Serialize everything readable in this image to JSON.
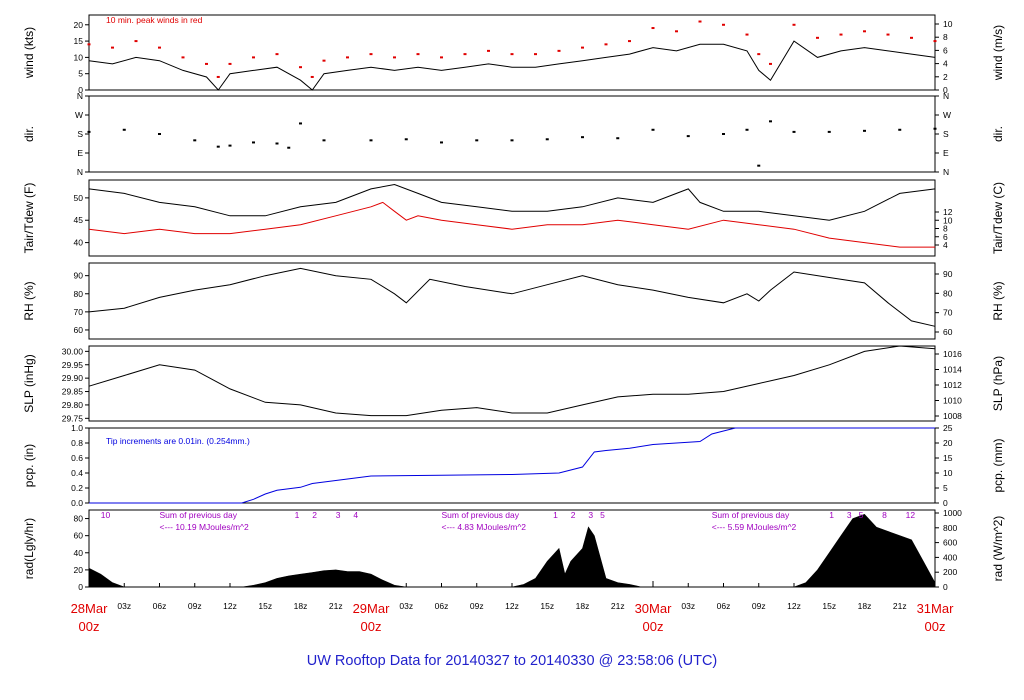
{
  "page": {
    "footer_title": "UW Rooftop Data for 20140327  to  20140330 @ 23:58:06  (UTC)"
  },
  "colors": {
    "axis": "#000000",
    "primary_series": "#000000",
    "secondary_series": "#e00000",
    "precip": "#0000e0",
    "radiation_text": "#a000c0",
    "date_labels": "#e00000",
    "footer": "#2222cc"
  },
  "chart_data": [
    {
      "id": "wind",
      "type": "line",
      "ylabel": "wind (kts)",
      "ylabel_right": "wind (m/s)",
      "ylim": [
        0,
        23
      ],
      "yticks": [
        0,
        5,
        10,
        15,
        20
      ],
      "yticks_right_values": [
        0,
        2,
        4,
        6,
        8,
        10
      ],
      "annotation": "10 min. peak winds in red",
      "series": [
        {
          "name": "wind speed",
          "style": "line",
          "color": "#000000",
          "x": [
            0,
            2,
            4,
            6,
            8,
            10,
            11,
            12,
            14,
            16,
            18,
            19,
            20,
            22,
            24,
            26,
            28,
            30,
            32,
            34,
            36,
            38,
            40,
            42,
            44,
            46,
            48,
            50,
            52,
            54,
            56,
            57,
            58,
            60,
            62,
            64,
            66,
            68,
            70,
            72
          ],
          "values": [
            9,
            8,
            10,
            9,
            6,
            4,
            0,
            5,
            6,
            7,
            3,
            0,
            5,
            6,
            7,
            6,
            7,
            6,
            7,
            8,
            7,
            7,
            8,
            9,
            10,
            11,
            13,
            12,
            14,
            14,
            12,
            6,
            3,
            15,
            10,
            12,
            13,
            12,
            11,
            10
          ]
        },
        {
          "name": "10 min. peak winds",
          "style": "dots",
          "color": "#e00000",
          "x": [
            0,
            2,
            4,
            6,
            8,
            10,
            11,
            12,
            14,
            16,
            18,
            19,
            20,
            22,
            24,
            26,
            28,
            30,
            32,
            34,
            36,
            38,
            40,
            42,
            44,
            46,
            48,
            50,
            52,
            54,
            56,
            57,
            58,
            60,
            62,
            64,
            66,
            68,
            70,
            72
          ],
          "values": [
            14,
            13,
            15,
            13,
            10,
            8,
            4,
            8,
            10,
            11,
            7,
            4,
            9,
            10,
            11,
            10,
            11,
            10,
            11,
            12,
            11,
            11,
            12,
            13,
            14,
            15,
            19,
            18,
            21,
            20,
            17,
            11,
            8,
            20,
            16,
            17,
            18,
            17,
            16,
            15
          ]
        }
      ]
    },
    {
      "id": "direction",
      "type": "scatter",
      "ylabel": "dir.",
      "ylim": [
        0,
        360
      ],
      "ytick_labels": [
        "N",
        "E",
        "S",
        "W",
        "N"
      ],
      "ytick_values": [
        0,
        90,
        180,
        270,
        360
      ],
      "series": [
        {
          "name": "wind direction",
          "color": "#000000",
          "x": [
            0,
            3,
            6,
            9,
            11,
            12,
            14,
            16,
            17,
            18,
            20,
            24,
            27,
            30,
            33,
            36,
            39,
            42,
            45,
            48,
            51,
            54,
            56,
            57,
            58,
            60,
            63,
            66,
            69,
            72
          ],
          "values": [
            190,
            200,
            180,
            150,
            120,
            125,
            140,
            135,
            115,
            230,
            150,
            150,
            155,
            140,
            150,
            150,
            155,
            165,
            160,
            200,
            170,
            180,
            200,
            30,
            240,
            190,
            190,
            195,
            200,
            205
          ]
        }
      ]
    },
    {
      "id": "temperature",
      "type": "line",
      "ylabel": "Tair/Tdew (F)",
      "ylabel_right": "Tair/Tdew (C)",
      "ylim": [
        37,
        54
      ],
      "yticks": [
        40,
        45,
        50
      ],
      "yticks_right_values": [
        4,
        6,
        8,
        10,
        12
      ],
      "series": [
        {
          "name": "Tair",
          "color": "#000000",
          "x": [
            0,
            3,
            6,
            9,
            12,
            15,
            18,
            21,
            24,
            26,
            28,
            30,
            33,
            36,
            39,
            42,
            45,
            48,
            50,
            51,
            52,
            54,
            57,
            60,
            63,
            66,
            69,
            72
          ],
          "values": [
            52,
            51,
            49,
            48,
            46,
            46,
            48,
            49,
            52,
            53,
            51,
            49,
            48,
            47,
            47,
            48,
            50,
            49,
            51,
            52,
            49,
            47,
            47,
            46,
            45,
            47,
            51,
            52
          ]
        },
        {
          "name": "Tdew",
          "color": "#e00000",
          "x": [
            0,
            3,
            6,
            9,
            12,
            15,
            18,
            21,
            24,
            25,
            26,
            27,
            28,
            30,
            33,
            36,
            39,
            42,
            45,
            48,
            51,
            54,
            57,
            60,
            63,
            66,
            69,
            72
          ],
          "values": [
            43,
            42,
            43,
            42,
            42,
            43,
            44,
            46,
            48,
            49,
            47,
            45,
            46,
            45,
            44,
            43,
            44,
            44,
            45,
            44,
            43,
            45,
            44,
            43,
            41,
            40,
            39,
            39
          ]
        }
      ]
    },
    {
      "id": "humidity",
      "type": "line",
      "ylabel": "RH (%)",
      "ylabel_right": "RH (%)",
      "ylim": [
        55,
        97
      ],
      "yticks": [
        60,
        70,
        80,
        90
      ],
      "yticks_right_values": [
        60,
        70,
        80,
        90
      ],
      "series": [
        {
          "name": "RH",
          "color": "#000000",
          "x": [
            0,
            3,
            6,
            9,
            12,
            15,
            18,
            21,
            24,
            26,
            27,
            29,
            32,
            36,
            39,
            42,
            45,
            48,
            51,
            54,
            56,
            57,
            58,
            60,
            63,
            66,
            68,
            70,
            72
          ],
          "values": [
            70,
            72,
            78,
            82,
            85,
            90,
            94,
            90,
            88,
            80,
            75,
            88,
            84,
            80,
            85,
            90,
            85,
            82,
            78,
            75,
            80,
            76,
            82,
            92,
            89,
            86,
            75,
            65,
            62
          ]
        }
      ]
    },
    {
      "id": "pressure",
      "type": "line",
      "ylabel": "SLP (inHg)",
      "ylabel_right": "SLP (hPa)",
      "ylim": [
        29.74,
        30.02
      ],
      "yticks": [
        29.75,
        29.8,
        29.85,
        29.9,
        29.95,
        30.0
      ],
      "yticks_right_values": [
        1008,
        1010,
        1012,
        1014,
        1016
      ],
      "series": [
        {
          "name": "SLP",
          "color": "#000000",
          "x": [
            0,
            3,
            6,
            9,
            12,
            15,
            18,
            21,
            24,
            27,
            30,
            33,
            36,
            39,
            42,
            45,
            48,
            51,
            54,
            57,
            60,
            63,
            66,
            69,
            72
          ],
          "values": [
            29.87,
            29.91,
            29.95,
            29.93,
            29.86,
            29.81,
            29.8,
            29.77,
            29.76,
            29.76,
            29.78,
            29.79,
            29.77,
            29.77,
            29.8,
            29.83,
            29.84,
            29.84,
            29.85,
            29.88,
            29.91,
            29.95,
            30.0,
            30.02,
            30.01
          ]
        }
      ]
    },
    {
      "id": "precipitation",
      "type": "line",
      "ylabel": "pcp. (in)",
      "ylabel_right": "pcp. (mm)",
      "ylim": [
        0,
        1.0
      ],
      "yticks": [
        0,
        0.2,
        0.4,
        0.6,
        0.8,
        1.0
      ],
      "yticks_right_values": [
        0,
        5,
        10,
        15,
        20,
        25
      ],
      "annotation": "Tip increments are 0.01in. (0.254mm.)",
      "series": [
        {
          "name": "cumulative precip",
          "color": "#0000e0",
          "x": [
            0,
            13,
            14,
            15,
            16,
            18,
            19,
            21,
            24,
            30,
            36,
            40,
            42,
            43,
            44,
            46,
            48,
            50,
            52,
            53,
            54,
            55,
            72
          ],
          "values": [
            0,
            0,
            0.05,
            0.12,
            0.17,
            0.21,
            0.26,
            0.3,
            0.36,
            0.37,
            0.38,
            0.4,
            0.48,
            0.68,
            0.7,
            0.73,
            0.78,
            0.8,
            0.82,
            0.92,
            0.96,
            1.0,
            1.0
          ]
        }
      ]
    },
    {
      "id": "radiation",
      "type": "area",
      "ylabel": "rad(Lgly/hr)",
      "ylabel_right": "rad (W/m^2)",
      "ylim": [
        0,
        90
      ],
      "yticks": [
        0,
        20,
        40,
        60,
        80
      ],
      "yticks_right_values": [
        0,
        200,
        400,
        600,
        800,
        1000
      ],
      "annotations": [
        {
          "label": "10",
          "x": 1
        },
        {
          "label": "Sum of previous day",
          "x": 6
        },
        {
          "label": "<--- 10.19 MJoules/m^2",
          "x": 6
        },
        {
          "label": "1",
          "x": 17.5
        },
        {
          "label": "2",
          "x": 19
        },
        {
          "label": "3",
          "x": 21
        },
        {
          "label": "4",
          "x": 22.5
        },
        {
          "label": "Sum of previous day",
          "x": 30
        },
        {
          "label": "<--- 4.83 MJoules/m^2",
          "x": 30
        },
        {
          "label": "1",
          "x": 39.5
        },
        {
          "label": "2",
          "x": 41
        },
        {
          "label": "3",
          "x": 42.5
        },
        {
          "label": "5",
          "x": 43.5
        },
        {
          "label": "Sum of previous day",
          "x": 53
        },
        {
          "label": "<--- 5.59 MJoules/m^2",
          "x": 53
        },
        {
          "label": "1",
          "x": 63
        },
        {
          "label": "3",
          "x": 64.5
        },
        {
          "label": "5",
          "x": 65.5
        },
        {
          "label": "8",
          "x": 67.5
        },
        {
          "label": "12",
          "x": 69.5
        }
      ],
      "series": [
        {
          "name": "solar radiation",
          "color": "#000000",
          "x": [
            0,
            1,
            2,
            3,
            13,
            14,
            15,
            16,
            17,
            18,
            19,
            20,
            21,
            22,
            23,
            24,
            25,
            26,
            27,
            36,
            37,
            38,
            39,
            40,
            40.5,
            41,
            42,
            42.5,
            43,
            44,
            45,
            46,
            47,
            60,
            61,
            62,
            63,
            64,
            65,
            66,
            67,
            68,
            69,
            70,
            71,
            72
          ],
          "values": [
            22,
            15,
            5,
            0,
            0,
            2,
            5,
            10,
            13,
            15,
            17,
            19,
            20,
            18,
            18,
            15,
            8,
            2,
            0,
            0,
            3,
            10,
            30,
            45,
            15,
            30,
            45,
            70,
            60,
            10,
            5,
            3,
            0,
            0,
            5,
            20,
            40,
            60,
            80,
            85,
            70,
            65,
            60,
            55,
            30,
            5
          ]
        }
      ]
    }
  ],
  "time_axis": {
    "tick_labels": [
      {
        "hour": 3,
        "label": "03z"
      },
      {
        "hour": 6,
        "label": "06z"
      },
      {
        "hour": 9,
        "label": "09z"
      },
      {
        "hour": 12,
        "label": "12z"
      },
      {
        "hour": 15,
        "label": "15z"
      },
      {
        "hour": 18,
        "label": "18z"
      },
      {
        "hour": 21,
        "label": "21z"
      },
      {
        "hour": 27,
        "label": "03z"
      },
      {
        "hour": 30,
        "label": "06z"
      },
      {
        "hour": 33,
        "label": "09z"
      },
      {
        "hour": 36,
        "label": "12z"
      },
      {
        "hour": 39,
        "label": "15z"
      },
      {
        "hour": 42,
        "label": "18z"
      },
      {
        "hour": 45,
        "label": "21z"
      },
      {
        "hour": 51,
        "label": "03z"
      },
      {
        "hour": 54,
        "label": "06z"
      },
      {
        "hour": 57,
        "label": "09z"
      },
      {
        "hour": 60,
        "label": "12z"
      },
      {
        "hour": 63,
        "label": "15z"
      },
      {
        "hour": 66,
        "label": "18z"
      },
      {
        "hour": 69,
        "label": "21z"
      }
    ],
    "date_labels": [
      {
        "hour": 0,
        "date": "28Mar",
        "time": "00z"
      },
      {
        "hour": 24,
        "date": "29Mar",
        "time": "00z"
      },
      {
        "hour": 48,
        "date": "30Mar",
        "time": "00z"
      },
      {
        "hour": 72,
        "date": "31Mar",
        "time": "00z"
      }
    ],
    "xlim_hours": [
      0,
      72
    ]
  }
}
